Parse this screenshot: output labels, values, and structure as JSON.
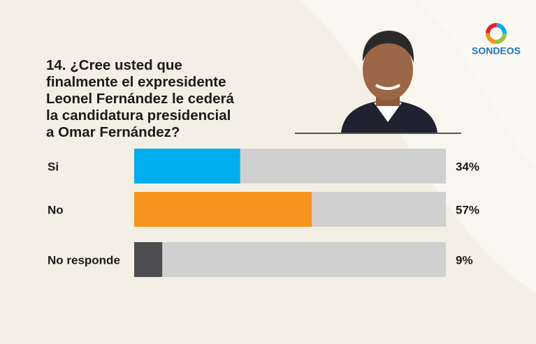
{
  "header": {
    "brand": "SONDEOS"
  },
  "chart_data": {
    "type": "bar",
    "orientation": "horizontal",
    "title": "14.  ¿Cree usted que\nfinalmente el expresidente\nLeonel Fernández le cederá\nla candidatura presidencial\na Omar Fernández?",
    "categories": [
      "Si",
      "No",
      "No responde"
    ],
    "values": [
      34,
      57,
      9
    ],
    "value_labels": [
      "34%",
      "57%",
      "9%"
    ],
    "colors": [
      "#00aeef",
      "#f7941d",
      "#4d4d4f"
    ],
    "track_color": "#d0d0d0",
    "xlim": [
      0,
      100
    ]
  }
}
